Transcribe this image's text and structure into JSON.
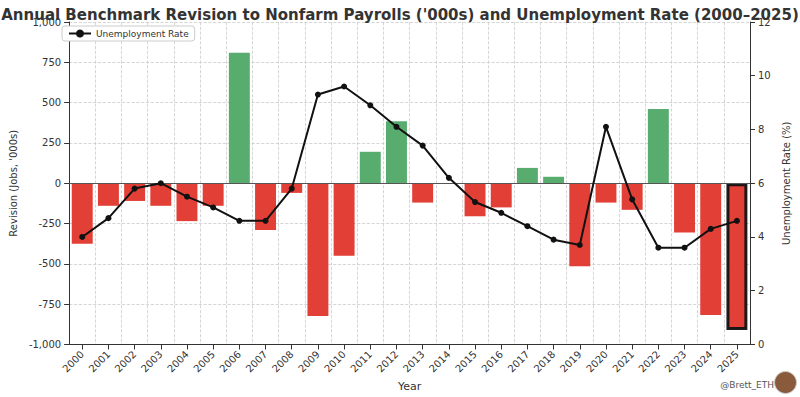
{
  "chart_data": {
    "type": "bar",
    "title": "Annual Benchmark Revision to Nonfarm Payrolls ('000s) and Unemployment Rate (2000–2025)",
    "x_label": "Year",
    "y_label": "Revision (Jobs, '000s)",
    "y2_label": "Unemployment Rate (%)",
    "annotation": "@Brett_ETH",
    "categories": [
      "2000",
      "2001",
      "2002",
      "2003",
      "2004",
      "2005",
      "2006",
      "2007",
      "2008",
      "2009",
      "2010",
      "2011",
      "2012",
      "2013",
      "2014",
      "2015",
      "2016",
      "2017",
      "2018",
      "2019",
      "2020",
      "2021",
      "2022",
      "2023",
      "2024",
      "2025"
    ],
    "series": [
      {
        "type": "bar",
        "values": [
          -375,
          -140,
          -110,
          -140,
          -235,
          -140,
          810,
          -290,
          -60,
          -824,
          -450,
          195,
          385,
          -120,
          0,
          -205,
          -150,
          95,
          40,
          -515,
          -120,
          -165,
          460,
          -305,
          -818,
          -911
        ],
        "colors": [
          "#e0352b",
          "#e0352b",
          "#e0352b",
          "#e0352b",
          "#e0352b",
          "#e0352b",
          "#4fa866",
          "#e0352b",
          "#e0352b",
          "#e0352b",
          "#e0352b",
          "#4fa866",
          "#4fa866",
          "#e0352b",
          "#e0352b",
          "#e0352b",
          "#e0352b",
          "#4fa866",
          "#4fa866",
          "#e0352b",
          "#e0352b",
          "#e0352b",
          "#4fa866",
          "#e0352b",
          "#e0352b",
          "#e0352b"
        ]
      },
      {
        "name": "Unemployment Rate",
        "type": "line",
        "axis": "y2",
        "color": "#111111",
        "marker": "circle",
        "line_style": "solid",
        "values": [
          4.0,
          4.7,
          5.8,
          6.0,
          5.5,
          5.1,
          4.6,
          4.6,
          5.8,
          9.3,
          9.6,
          8.9,
          8.1,
          7.4,
          6.2,
          5.3,
          4.9,
          4.4,
          3.9,
          3.7,
          8.1,
          5.4,
          3.6,
          3.6,
          4.3,
          4.6
        ]
      }
    ],
    "ylim": [
      -1000,
      1000
    ],
    "yticks": [
      -1000,
      -750,
      -500,
      -250,
      0,
      250,
      500,
      750,
      1000
    ],
    "y2lim": [
      0,
      12
    ],
    "y2ticks": [
      0,
      2,
      4,
      6,
      8,
      10,
      12
    ],
    "grid": true,
    "legend": "upper left"
  }
}
